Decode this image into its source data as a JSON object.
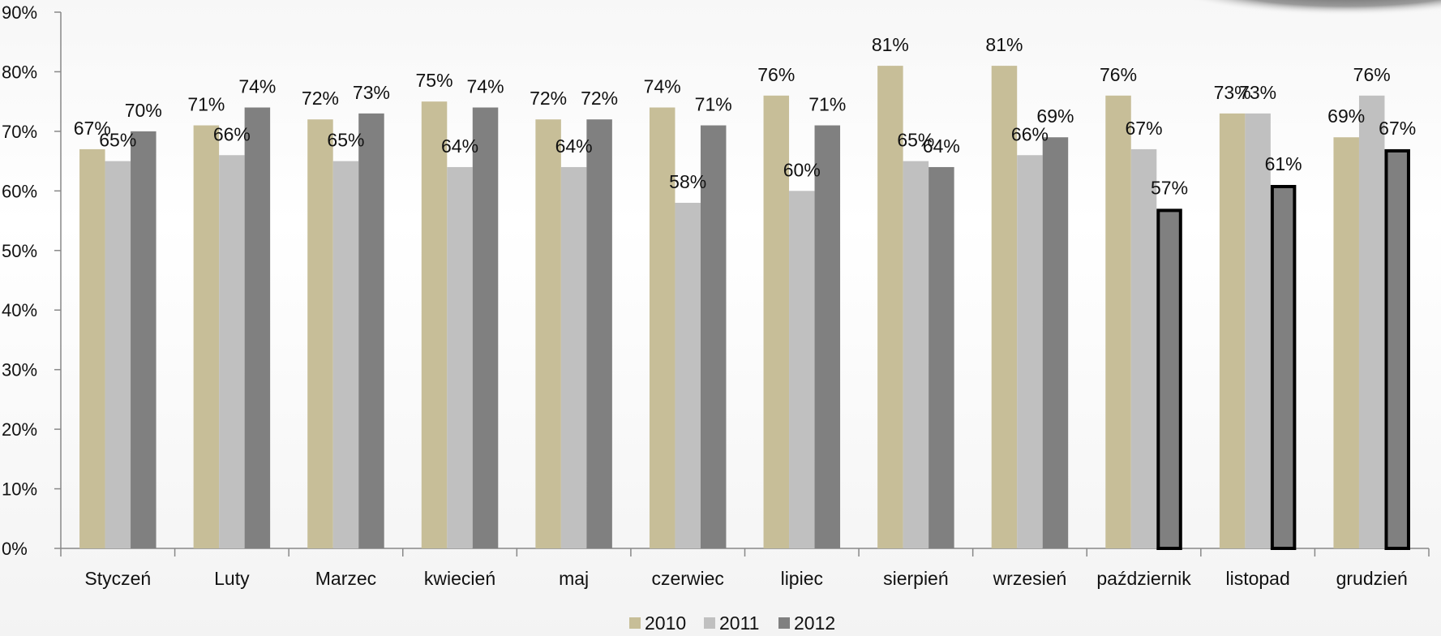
{
  "chart_data": {
    "type": "bar",
    "title": "",
    "xlabel": "",
    "ylabel": "",
    "ylim": [
      0,
      90
    ],
    "yticks": [
      0,
      10,
      20,
      30,
      40,
      50,
      60,
      70,
      80,
      90
    ],
    "ytick_labels": [
      "0%",
      "10%",
      "20%",
      "30%",
      "40%",
      "50%",
      "60%",
      "70%",
      "80%",
      "90%"
    ],
    "grid": false,
    "legend_position": "bottom",
    "categories": [
      "Styczeń",
      "Luty",
      "Marzec",
      "kwiecień",
      "maj",
      "czerwiec",
      "lipiec",
      "sierpień",
      "wrzesień",
      "październik",
      "listopad",
      "grudzień"
    ],
    "series": [
      {
        "name": "2010",
        "color": "#c7be98",
        "values": [
          67,
          71,
          72,
          75,
          72,
          74,
          76,
          81,
          81,
          76,
          73,
          69
        ],
        "labels": [
          "67%",
          "71%",
          "72%",
          "75%",
          "72%",
          "74%",
          "76%",
          "81%",
          "81%",
          "76%",
          "73%",
          "69%"
        ]
      },
      {
        "name": "2011",
        "color": "#c0c0c0",
        "values": [
          65,
          66,
          65,
          64,
          64,
          58,
          60,
          65,
          66,
          67,
          73,
          76
        ],
        "labels": [
          "65%",
          "66%",
          "65%",
          "64%",
          "64%",
          "58%",
          "60%",
          "65%",
          "66%",
          "67%",
          "73%",
          "76%"
        ]
      },
      {
        "name": "2012",
        "color": "#808080",
        "values": [
          70,
          74,
          73,
          74,
          72,
          71,
          71,
          64,
          69,
          57,
          61,
          67
        ],
        "labels": [
          "70%",
          "74%",
          "73%",
          "74%",
          "72%",
          "71%",
          "71%",
          "64%",
          "69%",
          "57%",
          "61%",
          "67%"
        ],
        "outlined_indices": [
          9,
          10,
          11
        ]
      }
    ]
  }
}
